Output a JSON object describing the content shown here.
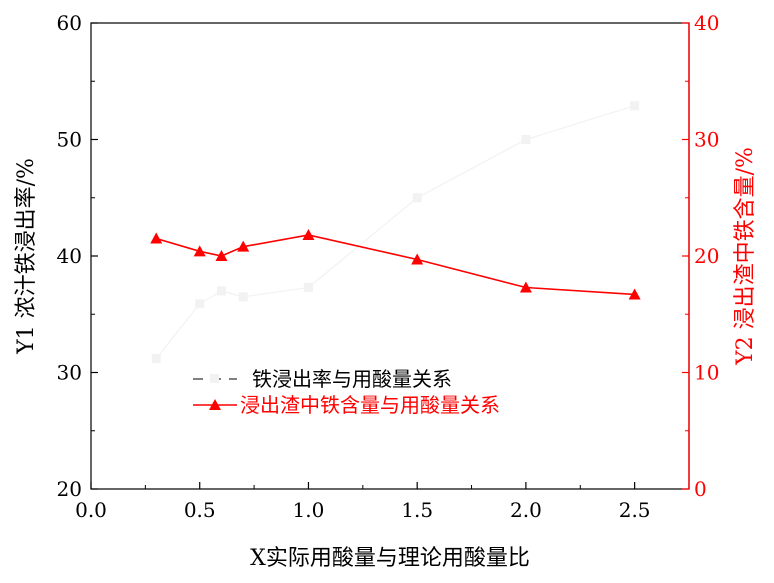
{
  "chart_data": {
    "type": "line",
    "title": "",
    "xlabel": "X实际用酸量与理论用酸量比",
    "ylabel": "Y1 浓汁铁浸出率/%",
    "y2label": "Y2 浸出渣中铁含量/%",
    "xlim": [
      0.0,
      2.75
    ],
    "ylim": [
      20,
      60
    ],
    "y2lim": [
      0,
      40
    ],
    "xticks": [
      "0.0",
      "0.5",
      "1.0",
      "1.5",
      "2.0",
      "2.5"
    ],
    "yticks": [
      "20",
      "30",
      "40",
      "50",
      "60"
    ],
    "y2ticks": [
      "0",
      "10",
      "20",
      "30",
      "40"
    ],
    "grid": false,
    "legend_position": "bottom-center",
    "series": [
      {
        "name": "铁浸出率与用酸量关系",
        "axis": "y1",
        "color": "#f2f2f2",
        "marker": "square",
        "x": [
          0.3,
          0.5,
          0.6,
          0.7,
          1.0,
          1.5,
          2.0,
          2.5
        ],
        "values": [
          31.2,
          35.9,
          37.0,
          36.5,
          37.3,
          45.0,
          50.0,
          52.9
        ]
      },
      {
        "name": "浸出渣中铁含量与用酸量关系",
        "axis": "y2",
        "color": "#ff0000",
        "marker": "triangle",
        "x": [
          0.3,
          0.5,
          0.6,
          0.7,
          1.0,
          1.5,
          2.0,
          2.5
        ],
        "values": [
          21.5,
          20.4,
          20.0,
          20.8,
          21.8,
          19.7,
          17.3,
          16.7
        ]
      }
    ]
  }
}
